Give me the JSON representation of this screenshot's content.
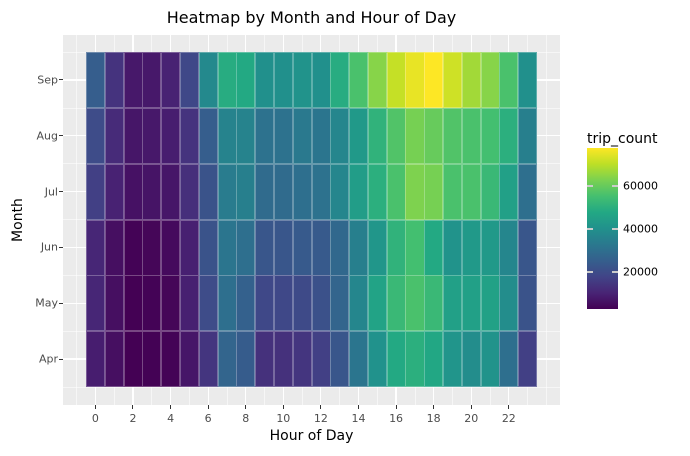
{
  "chart_data": {
    "type": "heatmap",
    "title": "Heatmap by Month and Hour of Day",
    "xlabel": "Hour of Day",
    "ylabel": "Month",
    "x": [
      0,
      1,
      2,
      3,
      4,
      5,
      6,
      7,
      8,
      9,
      10,
      11,
      12,
      13,
      14,
      15,
      16,
      17,
      18,
      19,
      20,
      21,
      22,
      23
    ],
    "x_tick_labels": [
      "0",
      "2",
      "4",
      "6",
      "8",
      "10",
      "12",
      "14",
      "16",
      "18",
      "20",
      "22"
    ],
    "x_tick_values": [
      0,
      2,
      4,
      6,
      8,
      10,
      12,
      14,
      16,
      18,
      20,
      22
    ],
    "y": [
      "Apr",
      "May",
      "Jun",
      "Jul",
      "Aug",
      "Sep"
    ],
    "y_tick_labels": [
      "Sep",
      "Aug",
      "Jul",
      "Jun",
      "May",
      "Apr"
    ],
    "colormap": "viridis",
    "legend": {
      "title": "trip_count",
      "position": "right",
      "breaks": [
        20000,
        40000,
        60000
      ],
      "break_labels": [
        "20000",
        "40000",
        "60000"
      ],
      "range": [
        3000,
        77500
      ]
    },
    "grid": true,
    "values": {
      "Sep": [
        25000,
        14000,
        8000,
        8000,
        10000,
        19000,
        38000,
        49000,
        48000,
        40000,
        40000,
        41000,
        40000,
        49000,
        56000,
        64000,
        71000,
        75000,
        77500,
        72000,
        67000,
        64000,
        56000,
        40000
      ],
      "Aug": [
        20000,
        12000,
        7500,
        8000,
        9000,
        14000,
        25000,
        36000,
        36000,
        31000,
        31000,
        33000,
        32000,
        37000,
        43000,
        51000,
        57000,
        62000,
        60000,
        57000,
        56000,
        55000,
        50000,
        35000
      ],
      "Jul": [
        17000,
        10000,
        6500,
        7000,
        7500,
        13000,
        22000,
        34000,
        35000,
        29000,
        29000,
        30000,
        31000,
        37000,
        44000,
        50000,
        56000,
        63000,
        62000,
        56000,
        56000,
        53000,
        45000,
        30000
      ],
      "Jun": [
        11000,
        6000,
        3500,
        4000,
        5000,
        9500,
        22000,
        32000,
        30000,
        23000,
        23000,
        24000,
        24000,
        28000,
        35000,
        42000,
        51000,
        55000,
        48000,
        41000,
        43000,
        43000,
        37000,
        23000
      ],
      "May": [
        11000,
        6000,
        3000,
        3500,
        4000,
        9500,
        20000,
        30000,
        26000,
        19000,
        19000,
        19500,
        21500,
        27000,
        37000,
        46000,
        53000,
        56000,
        53000,
        45000,
        45000,
        45500,
        39000,
        22000
      ],
      "Apr": [
        9000,
        6000,
        3000,
        3200,
        3500,
        7500,
        14500,
        27000,
        24500,
        13500,
        13500,
        14500,
        17000,
        23000,
        32000,
        40500,
        48000,
        50000,
        47500,
        41500,
        39000,
        41000,
        30000,
        17000
      ]
    }
  }
}
